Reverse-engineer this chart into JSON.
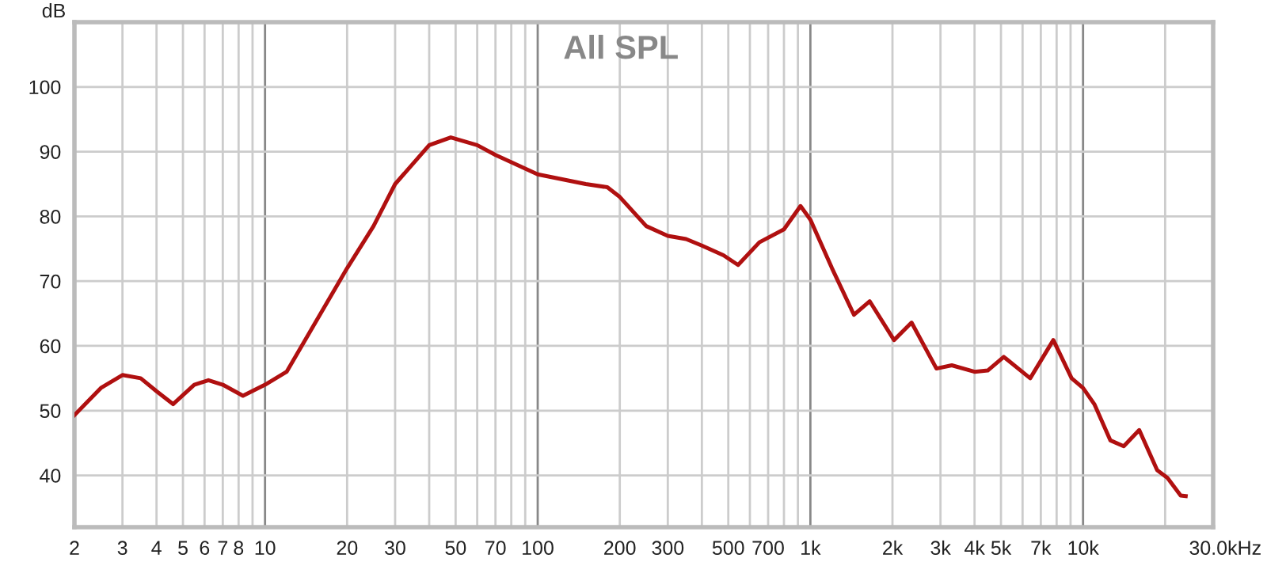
{
  "chart_data": {
    "type": "line",
    "title": "All SPL",
    "ylabel": "dB",
    "xlabel": "Hz",
    "log": "x",
    "grid": true,
    "marker": "none",
    "line_style": "solid",
    "xlim": [
      2,
      30000
    ],
    "ylim": [
      32,
      110
    ],
    "xticks": [
      2,
      3,
      4,
      5,
      6,
      7,
      8,
      {
        "value": 9,
        "label": null
      },
      10,
      20,
      30,
      {
        "value": 40,
        "label": null
      },
      50,
      {
        "value": 60,
        "label": null
      },
      70,
      {
        "value": 80,
        "label": null
      },
      {
        "value": 90,
        "label": null
      },
      100,
      200,
      300,
      {
        "value": 400,
        "label": null
      },
      500,
      {
        "value": 600,
        "label": null
      },
      700,
      {
        "value": 800,
        "label": null
      },
      {
        "value": 900,
        "label": null
      },
      {
        "value": 1000,
        "label": "1k"
      },
      {
        "value": 2000,
        "label": "2k"
      },
      {
        "value": 3000,
        "label": "3k"
      },
      {
        "value": 4000,
        "label": "4k"
      },
      {
        "value": 5000,
        "label": "5k"
      },
      {
        "value": 6000,
        "label": null
      },
      {
        "value": 7000,
        "label": "7k"
      },
      {
        "value": 8000,
        "label": null
      },
      {
        "value": 9000,
        "label": null
      },
      {
        "value": 10000,
        "label": "10k"
      },
      {
        "value": 20000,
        "label": null
      },
      {
        "value": 30000,
        "label": "30.0k"
      }
    ],
    "yticks": [
      40,
      50,
      60,
      70,
      80,
      90,
      100
    ],
    "series": [
      {
        "color": "#b01010",
        "x": [
          2,
          2.5,
          3,
          3.5,
          4,
          4.6,
          5.5,
          6.2,
          7,
          8.3,
          10,
          12,
          15,
          20,
          25,
          30,
          40,
          48,
          60,
          70,
          100,
          150,
          180,
          200,
          250,
          300,
          350,
          400,
          480,
          543,
          650,
          800,
          920,
          1000,
          1200,
          1445,
          1650,
          2027,
          2350,
          2900,
          3300,
          4000,
          4470,
          5120,
          6400,
          7780,
          9080,
          10000,
          11000,
          12600,
          14100,
          16070,
          18700,
          20400,
          22800,
          23800
        ],
        "values": [
          49.3,
          53.5,
          55.5,
          55,
          53,
          51,
          54,
          54.7,
          54,
          52.3,
          54,
          56,
          63,
          72,
          78.5,
          85,
          91,
          92.2,
          91,
          89.5,
          86.5,
          85,
          84.5,
          83,
          78.5,
          77,
          76.5,
          75.5,
          74,
          72.5,
          76,
          78,
          81.6,
          79.5,
          72,
          64.8,
          66.9,
          60.9,
          63.6,
          56.5,
          57,
          56,
          56.2,
          58.3,
          55,
          60.9,
          55,
          53.5,
          51,
          45.4,
          44.5,
          47,
          40.8,
          39.6,
          36.9,
          36.8
        ]
      }
    ]
  }
}
